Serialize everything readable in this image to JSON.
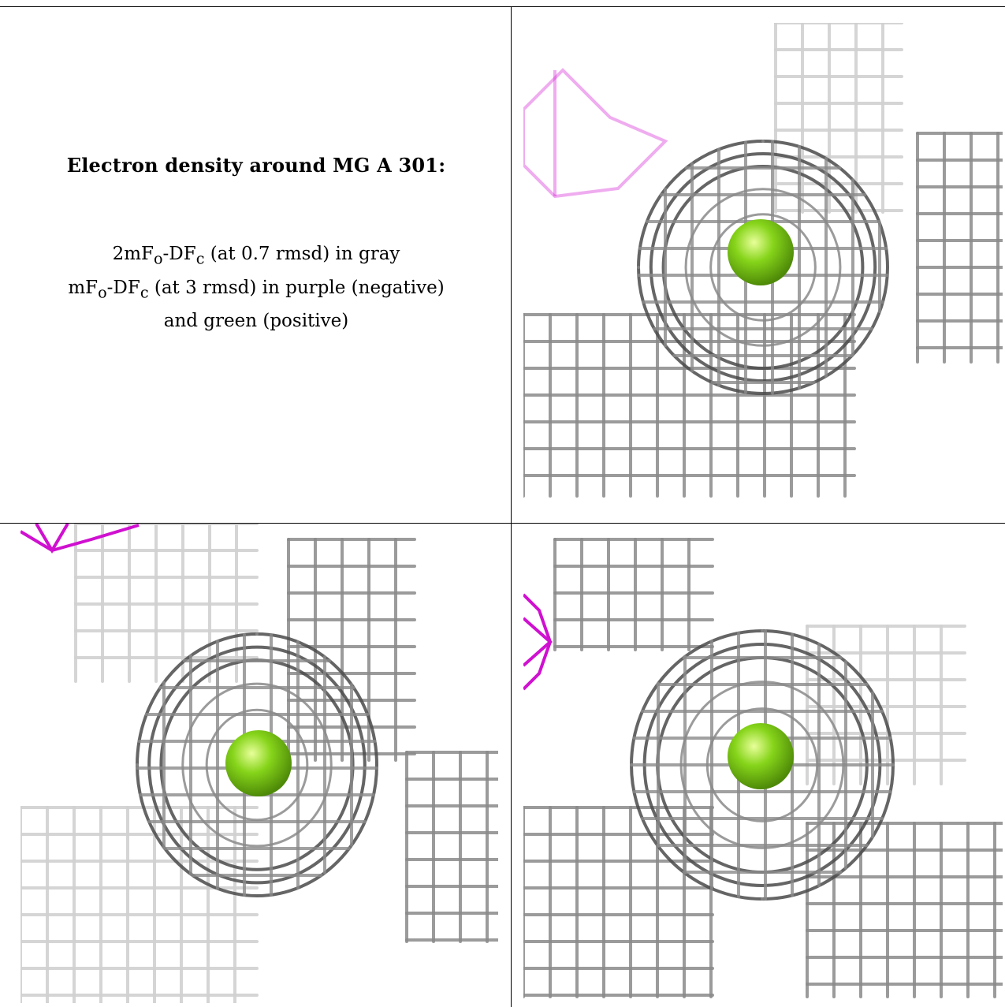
{
  "caption": {
    "title": "Electron density around MG A 301:",
    "lines": [
      "2mFo-DFc (at 0.7 rmsd) in gray",
      "mFo-DFc (at 3 rmsd) in purple (negative)",
      "and green (positive)"
    ]
  },
  "colors": {
    "mesh_gray": "#8a8a8a",
    "mesh_dark": "#4a4a4a",
    "mesh_light": "#d0d0d0",
    "negative_purple": "#d010d0",
    "positive_green": "#8fdc1c",
    "atom": "#86d41a"
  },
  "panels": [
    {
      "name": "view-1",
      "atom": "MG"
    },
    {
      "name": "view-2",
      "atom": "MG"
    },
    {
      "name": "view-3",
      "atom": "MG"
    }
  ]
}
